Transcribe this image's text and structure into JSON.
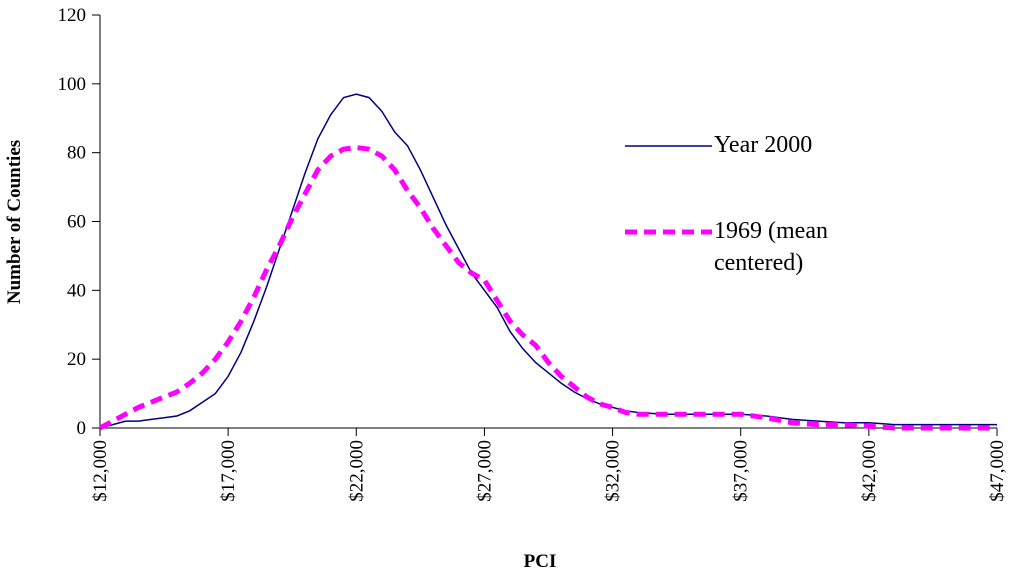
{
  "chart_data": {
    "type": "line",
    "x_label": "PCI",
    "y_label": "Number of Counties",
    "x": [
      12000,
      12500,
      13000,
      13500,
      14000,
      14500,
      15000,
      15500,
      16000,
      16500,
      17000,
      17500,
      18000,
      18500,
      19000,
      19500,
      20000,
      20500,
      21000,
      21500,
      22000,
      22500,
      23000,
      23500,
      24000,
      24500,
      25000,
      25500,
      26000,
      26500,
      27000,
      27500,
      28000,
      28500,
      29000,
      29500,
      30000,
      30500,
      31000,
      31500,
      32000,
      32500,
      33000,
      34000,
      35000,
      36000,
      37000,
      38000,
      39000,
      40000,
      41000,
      42000,
      43000,
      44000,
      45000,
      46000,
      47000
    ],
    "series": [
      {
        "name": "Year 2000",
        "color": "#000080",
        "dash": false,
        "values": [
          0,
          1,
          2,
          2,
          2.5,
          3,
          3.5,
          5,
          7.5,
          10,
          15,
          22,
          31,
          41,
          52,
          63,
          74,
          84,
          91,
          96,
          97,
          96,
          92,
          86,
          82,
          75,
          67,
          59,
          52,
          45,
          40,
          35,
          28,
          23,
          19,
          16,
          13,
          10.5,
          8.5,
          7,
          6,
          5,
          4.5,
          4,
          4,
          4,
          4,
          3.5,
          2.5,
          2,
          1.5,
          1.5,
          1,
          1,
          1,
          1,
          1
        ]
      },
      {
        "name": "1969 (mean centered)",
        "color": "#ff00ff",
        "dash": true,
        "values": [
          0,
          2,
          4,
          6,
          7.5,
          9,
          10.5,
          13,
          16,
          20,
          25,
          31,
          38,
          46,
          53,
          61,
          68,
          75,
          79,
          81,
          81.5,
          81,
          79,
          75,
          69,
          64,
          58,
          53,
          48,
          45,
          43,
          37,
          31,
          27,
          24,
          19,
          15,
          12,
          9,
          7,
          6,
          4.5,
          4,
          4,
          4,
          4,
          4,
          3,
          1.5,
          1,
          1,
          0.5,
          0,
          0,
          0,
          0,
          0
        ]
      }
    ],
    "xlim": [
      12000,
      47000
    ],
    "ylim": [
      0,
      120
    ],
    "xticks": [
      {
        "value": 12000,
        "label": "$12,000"
      },
      {
        "value": 17000,
        "label": "$17,000"
      },
      {
        "value": 22000,
        "label": "$22,000"
      },
      {
        "value": 27000,
        "label": "$27,000"
      },
      {
        "value": 32000,
        "label": "$32,000"
      },
      {
        "value": 37000,
        "label": "$37,000"
      },
      {
        "value": 42000,
        "label": "$42,000"
      },
      {
        "value": 47000,
        "label": "$47,000"
      }
    ],
    "yticks": [
      0,
      20,
      40,
      60,
      80,
      100,
      120
    ]
  }
}
